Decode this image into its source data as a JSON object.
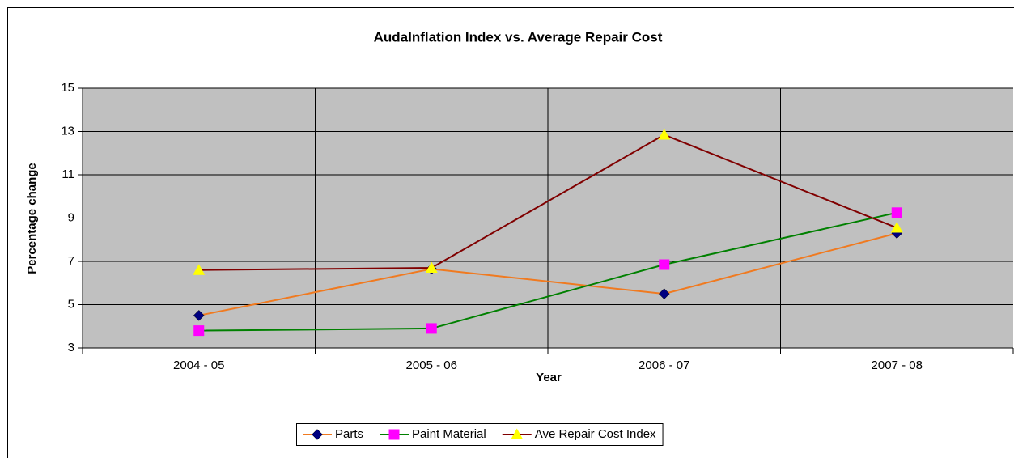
{
  "chart_data": {
    "type": "line",
    "title": "AudaInflation Index vs. Average Repair Cost",
    "x_label": "Year",
    "y_label": "Percentage change",
    "categories": [
      "2004 - 05",
      "2005 - 06",
      "2006 - 07",
      "2007 - 08"
    ],
    "series": [
      {
        "name": "Parts",
        "color": "#f07a20",
        "marker": "diamond",
        "marker_color": "#000080",
        "values": [
          4.5,
          6.65,
          5.5,
          8.3
        ]
      },
      {
        "name": "Paint Material",
        "color": "#008000",
        "marker": "square",
        "marker_color": "#ff00ff",
        "values": [
          3.8,
          3.9,
          6.85,
          9.25
        ]
      },
      {
        "name": "Ave Repair Cost Index",
        "color": "#800000",
        "marker": "triangle",
        "marker_color": "#ffff00",
        "values": [
          6.6,
          6.7,
          12.85,
          8.55
        ]
      }
    ],
    "ylim": [
      3,
      15
    ],
    "yticks": [
      3,
      5,
      7,
      9,
      11,
      13,
      15
    ],
    "grid": true,
    "legend": "bottom"
  }
}
